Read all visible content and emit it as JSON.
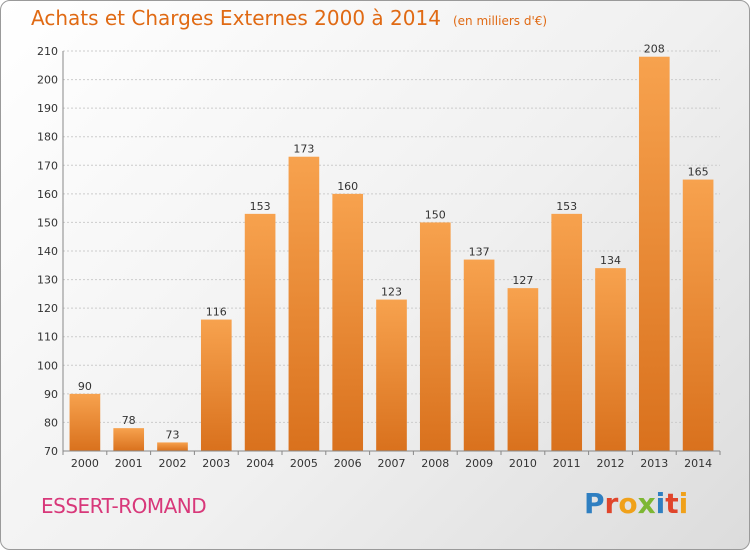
{
  "header": {
    "title": "Achats et Charges Externes 2000 à 2014",
    "subtitle": "(en milliers d'€)"
  },
  "footer": {
    "location": "ESSERT-ROMAND",
    "brand_letters": [
      {
        "char": "P",
        "color": "#2f7fc1"
      },
      {
        "char": "r",
        "color": "#e0452b"
      },
      {
        "char": "o",
        "color": "#f0a11a"
      },
      {
        "char": "x",
        "color": "#7db733"
      },
      {
        "char": "i",
        "color": "#2f7fc1"
      },
      {
        "char": "t",
        "color": "#e0452b"
      },
      {
        "char": "i",
        "color": "#f0a11a"
      }
    ]
  },
  "colors": {
    "bar_light": "#f7a24e",
    "bar_dark": "#d9711d",
    "text": "#333333",
    "grid": "#cccccc"
  },
  "chart_data": {
    "type": "bar",
    "title": "Achats et Charges Externes 2000 à 2014",
    "subtitle": "(en milliers d'€)",
    "categories": [
      "2000",
      "2001",
      "2002",
      "2003",
      "2004",
      "2005",
      "2006",
      "2007",
      "2008",
      "2009",
      "2010",
      "2011",
      "2012",
      "2013",
      "2014"
    ],
    "values": [
      90,
      78,
      73,
      116,
      153,
      173,
      160,
      123,
      150,
      137,
      127,
      153,
      134,
      208,
      165
    ],
    "ylim": [
      70,
      210
    ],
    "yticks": [
      70,
      80,
      90,
      100,
      110,
      120,
      130,
      140,
      150,
      160,
      170,
      180,
      190,
      200,
      210
    ],
    "grid": true,
    "data_labels": true
  }
}
